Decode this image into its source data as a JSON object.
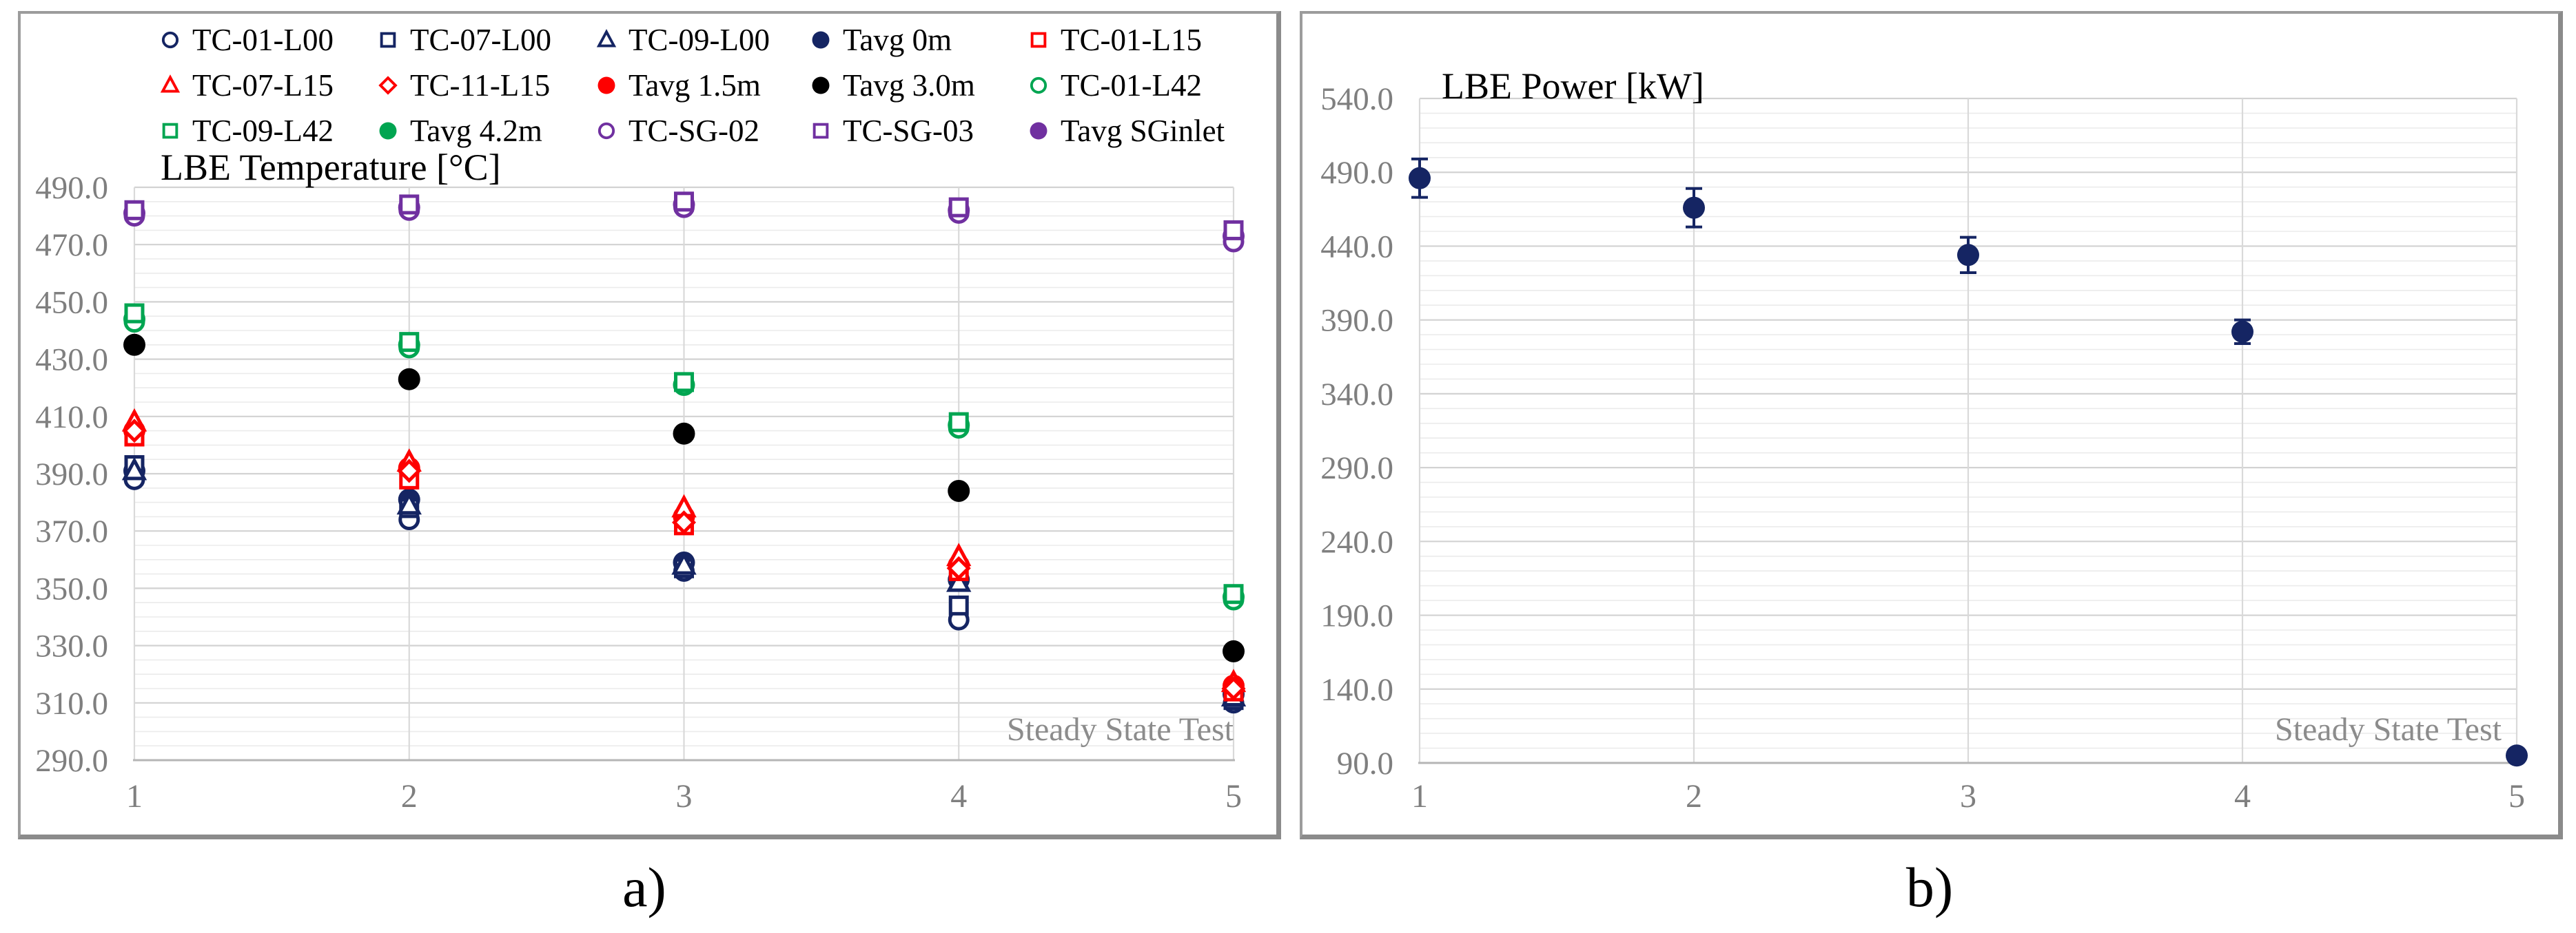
{
  "captions": {
    "left": "a)",
    "right": "b)"
  },
  "colors": {
    "navy": "#152563",
    "red": "#FE0000",
    "black": "#000000",
    "green": "#00A551",
    "purple": "#7030A0",
    "grid_major": "#d2d2d2",
    "grid_minor": "#ebebeb",
    "grid_vertical": "#d9d9d9",
    "axis_line": "#b5b5b5",
    "tick_text": "#7f7f7f",
    "annotation_text": "#8c8c8c",
    "panel_border": "#9c9c9c"
  },
  "chart_data": [
    {
      "type": "scatter",
      "title": "LBE Temperature [°C]",
      "annotation": "Steady State Test",
      "xlabel": "",
      "ylabel": "LBE Temperature [°C]",
      "x": [
        1,
        2,
        3,
        4,
        5
      ],
      "xtick_labels": [
        "1",
        "2",
        "3",
        "4",
        "5"
      ],
      "ylim": [
        290,
        490
      ],
      "ytick_step": 20,
      "ytick_minor_step": 5,
      "ytick_labels": [
        "490.0",
        "470.0",
        "450.0",
        "430.0",
        "410.0",
        "390.0",
        "370.0",
        "350.0",
        "330.0",
        "310.0",
        "290.0"
      ],
      "grid": true,
      "legend_position": "top",
      "series": [
        {
          "name": "TC-01-L00",
          "marker": "circle",
          "fill": false,
          "color": "#152563",
          "values": [
            388,
            374,
            356,
            339,
            310
          ]
        },
        {
          "name": "TC-07-L00",
          "marker": "square",
          "fill": false,
          "color": "#152563",
          "values": [
            393,
            378,
            357,
            344,
            311
          ]
        },
        {
          "name": "TC-09-L00",
          "marker": "triangle",
          "fill": false,
          "color": "#152563",
          "values": [
            391,
            379,
            358,
            352,
            312
          ]
        },
        {
          "name": "Tavg 0m",
          "marker": "circle",
          "fill": true,
          "color": "#152563",
          "values": [
            391,
            381,
            359,
            353,
            313
          ]
        },
        {
          "name": "TC-01-L15",
          "marker": "square",
          "fill": false,
          "color": "#FE0000",
          "values": [
            403,
            388,
            372,
            356,
            314
          ]
        },
        {
          "name": "TC-07-L15",
          "marker": "triangle",
          "fill": false,
          "color": "#FE0000",
          "values": [
            408,
            394,
            378,
            361,
            317
          ]
        },
        {
          "name": "TC-11-L15",
          "marker": "diamond",
          "fill": false,
          "color": "#FE0000",
          "values": [
            405,
            391,
            373,
            357,
            315
          ]
        },
        {
          "name": "Tavg 1.5m",
          "marker": "circle",
          "fill": true,
          "color": "#FE0000",
          "values": [
            405,
            392,
            375,
            358,
            316
          ]
        },
        {
          "name": "Tavg 3.0m",
          "marker": "circle",
          "fill": true,
          "color": "#000000",
          "values": [
            435,
            423,
            404,
            384,
            328
          ]
        },
        {
          "name": "TC-01-L42",
          "marker": "circle",
          "fill": false,
          "color": "#00A551",
          "values": [
            443,
            434,
            421,
            406,
            346
          ]
        },
        {
          "name": "TC-09-L42",
          "marker": "square",
          "fill": false,
          "color": "#00A551",
          "values": [
            446,
            436,
            422,
            408,
            348
          ]
        },
        {
          "name": "Tavg 4.2m",
          "marker": "circle",
          "fill": true,
          "color": "#00A551",
          "values": [
            444,
            435,
            421,
            407,
            347
          ]
        },
        {
          "name": "TC-SG-02",
          "marker": "circle",
          "fill": false,
          "color": "#7030A0",
          "values": [
            480,
            482,
            483,
            481,
            471
          ]
        },
        {
          "name": "TC-SG-03",
          "marker": "square",
          "fill": false,
          "color": "#7030A0",
          "values": [
            482,
            484,
            485,
            483,
            475
          ]
        },
        {
          "name": "Tavg SGinlet",
          "marker": "circle",
          "fill": true,
          "color": "#7030A0",
          "values": [
            481,
            483,
            484,
            482,
            473
          ]
        }
      ]
    },
    {
      "type": "scatter",
      "title": "LBE Power [kW]",
      "annotation": "Steady State Test",
      "xlabel": "",
      "ylabel": "LBE Power [kW]",
      "x": [
        1,
        2,
        3,
        4,
        5
      ],
      "xtick_labels": [
        "1",
        "2",
        "3",
        "4",
        "5"
      ],
      "ylim": [
        90,
        540
      ],
      "ytick_step": 50,
      "ytick_minor_step": 10,
      "ytick_labels": [
        "540.0",
        "490.0",
        "440.0",
        "390.0",
        "340.0",
        "290.0",
        "240.0",
        "190.0",
        "140.0",
        "90.0"
      ],
      "grid": true,
      "legend_position": "none",
      "series": [
        {
          "name": "LBE Power",
          "marker": "circle",
          "fill": true,
          "color": "#152563",
          "values": [
            486,
            466,
            434,
            382,
            95
          ],
          "yerr": [
            13,
            13,
            12,
            8,
            3
          ]
        }
      ]
    }
  ]
}
